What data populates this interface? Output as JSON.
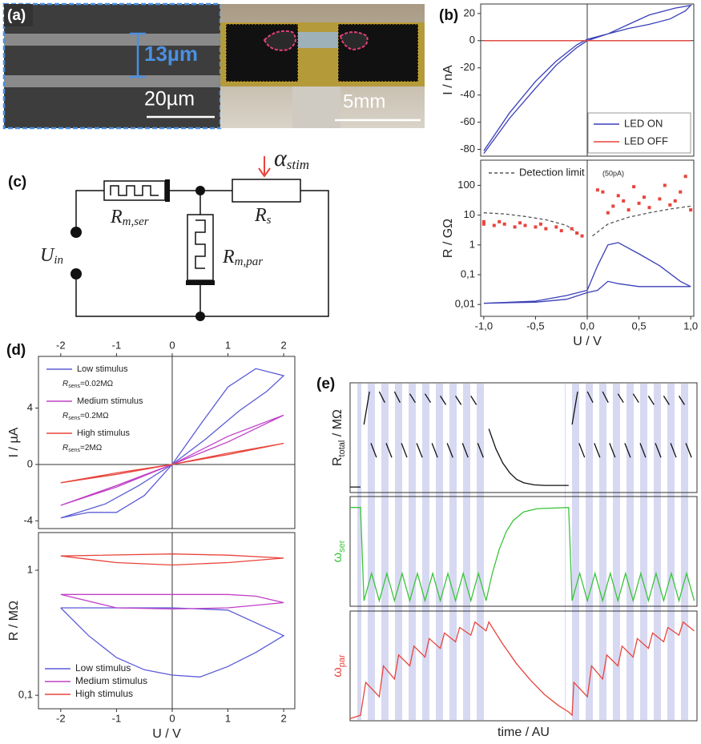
{
  "panel_labels": [
    "(a)",
    "(b)",
    "(c)",
    "(d)",
    "(e)"
  ],
  "micrograph": {
    "gap_width": "13µm",
    "scale_bar": "20µm"
  },
  "photo": {
    "scale_bar": "5mm"
  },
  "circuit": {
    "stimulus": {
      "symbol": "α",
      "subscript": "stim"
    },
    "series_resistor": {
      "symbol": "R",
      "subscript": "s"
    },
    "memristor_series": {
      "symbol": "R",
      "subscript": "m,ser"
    },
    "memristor_parallel": {
      "symbol": "R",
      "subscript": "m,par"
    },
    "source": {
      "symbol": "U",
      "subscript": "in"
    }
  },
  "chart_data": [
    {
      "type": "line",
      "ylabel": "I / nA",
      "xlim": [
        -1.03,
        1.03
      ],
      "ylim": [
        -85,
        27
      ],
      "yticks": [
        -80,
        -60,
        -40,
        -20,
        0,
        20
      ],
      "zero_lines": true,
      "legend": "lower right",
      "series": [
        {
          "name": "LED ON",
          "color": "#3a3fb8",
          "x": [
            -1,
            -0.75,
            -0.5,
            -0.3,
            -0.1,
            0,
            0.2,
            0.4,
            0.6,
            0.8,
            0.95,
            1,
            0.85,
            0.6,
            0.4,
            0.2,
            0,
            -0.1,
            -0.3,
            -0.5,
            -0.75,
            -1
          ],
          "values": [
            -83,
            -57,
            -35,
            -18,
            -5,
            0,
            5,
            9,
            12,
            16,
            22,
            26,
            24,
            19,
            12,
            5,
            1,
            -3,
            -15,
            -30,
            -53,
            -81
          ]
        },
        {
          "name": "LED OFF",
          "color": "#e8453c",
          "x": [
            -1,
            1
          ],
          "values": [
            0,
            0
          ]
        }
      ]
    },
    {
      "type": "line",
      "log_y": true,
      "xlabel": "U / V",
      "ylabel": "R / GΩ",
      "xlim": [
        -1.03,
        1.03
      ],
      "ylim": [
        0.004,
        700
      ],
      "zero_lines": true,
      "legend": "upper left",
      "xticks": [
        {
          "value": -1,
          "label": "-1,0"
        },
        {
          "value": -0.5,
          "label": "-0,5"
        },
        {
          "value": 0,
          "label": "0,0"
        },
        {
          "value": 0.5,
          "label": "0,5"
        },
        {
          "value": 1,
          "label": "1,0"
        }
      ],
      "yticks": [
        {
          "value": 0.01,
          "label": "0,01"
        },
        {
          "value": 0.1,
          "label": "0,1"
        },
        1,
        10,
        100
      ],
      "series": [
        {
          "name": "Detection limit",
          "name_note": "(50pA)",
          "style": "dashed",
          "color": "#555555",
          "x": [
            -1,
            -0.8,
            -0.6,
            -0.4,
            -0.2,
            -0.05,
            null,
            0.05,
            0.2,
            0.4,
            0.6,
            0.8,
            1
          ],
          "values": [
            12,
            11,
            9,
            7,
            4.5,
            2,
            null,
            2,
            5,
            8.5,
            12,
            16,
            20
          ]
        },
        {
          "style": "points",
          "color": "#e8453c",
          "x": [
            -1,
            -1,
            -0.9,
            -0.85,
            -0.8,
            -0.7,
            -0.65,
            -0.6,
            -0.5,
            -0.45,
            -0.4,
            -0.3,
            -0.25,
            -0.15,
            -0.1,
            -0.05,
            0.1,
            0.15,
            0.2,
            0.25,
            0.3,
            0.35,
            0.4,
            0.45,
            0.5,
            0.55,
            0.6,
            0.7,
            0.75,
            0.8,
            0.85,
            0.9,
            0.95,
            1
          ],
          "values": [
            6,
            5,
            4.5,
            6,
            5,
            4,
            5.5,
            4.5,
            4,
            5,
            3.5,
            4,
            3,
            3.5,
            2.5,
            2,
            70,
            60,
            12,
            20,
            45,
            30,
            15,
            90,
            25,
            40,
            18,
            35,
            100,
            22,
            30,
            60,
            200,
            15
          ]
        },
        {
          "color": "#3a3fb8",
          "x": [
            -1,
            -0.5,
            -0.2,
            0,
            0.1,
            0.2,
            0.3,
            0.5,
            0.7,
            0.9,
            1,
            0.8,
            0.5,
            0.3,
            0.2,
            0.1,
            0,
            -0.2,
            -0.5,
            -1
          ],
          "values": [
            0.011,
            0.013,
            0.02,
            0.03,
            0.2,
            1,
            1.2,
            0.5,
            0.2,
            0.06,
            0.04,
            0.04,
            0.04,
            0.05,
            0.06,
            0.03,
            0.025,
            0.015,
            0.012,
            0.011
          ]
        }
      ]
    },
    {
      "type": "line",
      "ylabel": "I / µA",
      "xaxis_top": true,
      "xlim": [
        -2.4,
        2.2
      ],
      "ylim": [
        -4.55,
        7.67
      ],
      "xticks": [
        -2,
        -1,
        0,
        1,
        2
      ],
      "yticks": [
        -4,
        0,
        4
      ],
      "zero_lines": true,
      "legend": "upper left",
      "series": [
        {
          "name": "Low stimulus",
          "note": {
            "symbol": "R",
            "subscript": "sens",
            "text": "=0.02MΩ"
          },
          "color": "#5b5bd6",
          "x": [
            -2,
            -1.5,
            -1,
            -0.5,
            0,
            0.5,
            1,
            1.5,
            2,
            1.7,
            1.2,
            0.6,
            0,
            -0.6,
            -1.2,
            -2
          ],
          "values": [
            -3.8,
            -3.4,
            -3.4,
            -2.2,
            0,
            2.8,
            5.5,
            6.8,
            6.3,
            5.2,
            3.8,
            1.8,
            0,
            -1.5,
            -2.8,
            -3.8
          ]
        },
        {
          "name": "Medium stimulus",
          "note": {
            "symbol": "R",
            "subscript": "sens",
            "text": "=0.2MΩ"
          },
          "color": "#c040c8",
          "x": [
            -2,
            -1,
            0,
            1,
            2,
            1,
            0,
            -1,
            -2
          ],
          "values": [
            -2.9,
            -1.5,
            0,
            1.6,
            3.5,
            2,
            0,
            -1.6,
            -2.9
          ]
        },
        {
          "name": "High stimulus",
          "note": {
            "symbol": "R",
            "subscript": "sens",
            "text": "=2MΩ"
          },
          "color": "#e8453c",
          "x": [
            -2,
            -1,
            0,
            1,
            2,
            1,
            0,
            -1,
            -2
          ],
          "values": [
            -1.3,
            -0.7,
            0,
            0.7,
            1.5,
            0.8,
            0,
            -0.6,
            -1.3
          ]
        }
      ]
    },
    {
      "type": "line",
      "log_y": true,
      "xlabel": "U / V",
      "ylabel": "R / MΩ",
      "xlim": [
        -2.4,
        2.2
      ],
      "ylim": [
        0.078,
        2
      ],
      "zero_lines": true,
      "legend": "lower left",
      "xticks": [
        -2,
        -1,
        0,
        1,
        2
      ],
      "yticks": [
        {
          "value": 0.1,
          "label": "0,1"
        },
        1
      ],
      "series": [
        {
          "name": "Low stimulus",
          "color": "#5b5bd6",
          "x": [
            -2,
            0,
            1,
            2,
            1.5,
            1,
            0.5,
            0,
            -0.5,
            -1,
            -1.5,
            -2
          ],
          "values": [
            0.5,
            0.5,
            0.48,
            0.3,
            0.22,
            0.17,
            0.14,
            0.145,
            0.16,
            0.2,
            0.3,
            0.5
          ]
        },
        {
          "name": "Medium stimulus",
          "color": "#c040c8",
          "x": [
            -2,
            1,
            1.5,
            2,
            1,
            0,
            -1,
            -2
          ],
          "values": [
            0.64,
            0.64,
            0.62,
            0.55,
            0.5,
            0.49,
            0.5,
            0.64
          ]
        },
        {
          "name": "High stimulus",
          "color": "#e8453c",
          "x": [
            -2,
            0,
            1,
            2,
            1,
            0,
            -1,
            -2
          ],
          "values": [
            1.3,
            1.35,
            1.32,
            1.25,
            1.15,
            1.1,
            1.15,
            1.3
          ]
        }
      ]
    },
    {
      "type": "line",
      "ylabel": {
        "symbol": "R",
        "subscript": "total",
        "unit": " / MΩ"
      },
      "xlim": [
        0,
        100
      ],
      "ylim": [
        0,
        1
      ],
      "series": [
        {
          "color": "#111111",
          "x": [
            0,
            3,
            null,
            40,
            42,
            44,
            46,
            48,
            50,
            53,
            56,
            63
          ],
          "values": [
            0.05,
            0.05,
            null,
            0.58,
            0.4,
            0.27,
            0.18,
            0.12,
            0.09,
            0.07,
            0.065,
            0.065
          ]
        },
        {
          "color": "#111111",
          "x": [
            4,
            5.6,
            null,
            8.4,
            10,
            null,
            12.8,
            14.4,
            null,
            17.2,
            18.8,
            null,
            21.6,
            23.2,
            null,
            26,
            27.6,
            null,
            30.4,
            32,
            null,
            34.8,
            36.4,
            null,
            64,
            65.6,
            null,
            68.4,
            70,
            null,
            72.8,
            74.4,
            null,
            77.2,
            78.8,
            null,
            81.6,
            83.2,
            null,
            86,
            87.6,
            null,
            90.4,
            92,
            null,
            94.8,
            96.4
          ],
          "values": [
            0.62,
            0.92,
            null,
            0.92,
            0.82,
            null,
            0.92,
            0.82,
            null,
            0.9,
            0.82,
            null,
            0.9,
            0.82,
            null,
            0.88,
            0.8,
            null,
            0.88,
            0.8,
            null,
            0.88,
            0.8,
            null,
            0.62,
            0.92,
            null,
            0.92,
            0.82,
            null,
            0.92,
            0.82,
            null,
            0.9,
            0.82,
            null,
            0.9,
            0.82,
            null,
            0.88,
            0.8,
            null,
            0.88,
            0.8,
            null,
            0.88,
            0.8
          ]
        },
        {
          "color": "#111111",
          "x": [
            6,
            7.6,
            null,
            10.4,
            12,
            null,
            14.8,
            16.4,
            null,
            19.2,
            20.8,
            null,
            23.6,
            25.2,
            null,
            28,
            29.6,
            null,
            32.4,
            34,
            null,
            36.8,
            38.4,
            null,
            66,
            67.6,
            null,
            70.4,
            72,
            null,
            74.8,
            76.4,
            null,
            79.2,
            80.8,
            null,
            83.6,
            85.2,
            null,
            88,
            89.6,
            null,
            92.4,
            94,
            null,
            96.8,
            98.4
          ],
          "values": [
            0.45,
            0.32,
            null,
            0.45,
            0.32,
            null,
            0.45,
            0.32,
            null,
            0.45,
            0.32,
            null,
            0.45,
            0.32,
            null,
            0.45,
            0.32,
            null,
            0.45,
            0.32,
            null,
            0.45,
            0.32,
            null,
            0.45,
            0.32,
            null,
            0.45,
            0.32,
            null,
            0.45,
            0.32,
            null,
            0.45,
            0.32,
            null,
            0.45,
            0.32,
            null,
            0.45,
            0.32,
            null,
            0.45,
            0.32,
            null,
            0.45,
            0.32
          ]
        }
      ]
    },
    {
      "type": "line",
      "ylabel": {
        "symbol": "ω",
        "subscript": "ser"
      },
      "ylabel_color": "#3cc43c",
      "xlim": [
        0,
        100
      ],
      "ylim": [
        0,
        1
      ],
      "series": [
        {
          "color": "#3cc43c",
          "x": [
            0,
            3,
            4,
            6.2,
            8.4,
            10.6,
            12.8,
            15,
            17.2,
            19.4,
            21.6,
            23.8,
            26,
            28.2,
            30.4,
            32.6,
            34.8,
            37,
            39.2,
            41,
            43,
            45,
            47,
            50,
            54,
            63,
            64,
            66.2,
            68.4,
            70.6,
            72.8,
            75,
            77.2,
            79.4,
            81.6,
            83.8,
            86,
            88.2,
            90.4,
            92.6,
            94.8,
            97,
            99.2
          ],
          "values": [
            0.9,
            0.9,
            0.05,
            0.3,
            0.05,
            0.3,
            0.05,
            0.3,
            0.05,
            0.3,
            0.05,
            0.3,
            0.05,
            0.3,
            0.05,
            0.3,
            0.05,
            0.3,
            0.05,
            0.3,
            0.52,
            0.68,
            0.78,
            0.86,
            0.89,
            0.9,
            0.05,
            0.3,
            0.05,
            0.3,
            0.05,
            0.3,
            0.05,
            0.3,
            0.05,
            0.3,
            0.05,
            0.3,
            0.05,
            0.3,
            0.05,
            0.3,
            0.05
          ]
        }
      ]
    },
    {
      "type": "line",
      "ylabel": {
        "symbol": "ω",
        "subscript": "par"
      },
      "ylabel_color": "#e8453c",
      "xlabel": "time / AU",
      "xlim": [
        0,
        100
      ],
      "ylim": [
        0,
        1
      ],
      "series": [
        {
          "color": "#e8453c",
          "x": [
            0,
            3,
            4.5,
            8.4,
            9.6,
            12.8,
            14,
            17.2,
            18.4,
            21.6,
            22.8,
            26,
            27.2,
            30.4,
            31.6,
            34.8,
            36,
            39.2,
            40,
            44,
            48,
            52,
            56,
            60,
            63,
            64,
            64.5,
            68.4,
            69.6,
            72.8,
            74,
            77.2,
            78.4,
            81.6,
            82.8,
            86,
            87.2,
            90.4,
            91.6,
            94.8,
            96,
            99.2
          ],
          "values": [
            0.02,
            0.05,
            0.35,
            0.22,
            0.5,
            0.38,
            0.6,
            0.5,
            0.68,
            0.58,
            0.75,
            0.66,
            0.8,
            0.72,
            0.85,
            0.78,
            0.9,
            0.82,
            0.9,
            0.7,
            0.52,
            0.37,
            0.24,
            0.14,
            0.08,
            0.05,
            0.35,
            0.22,
            0.5,
            0.38,
            0.6,
            0.5,
            0.68,
            0.58,
            0.75,
            0.66,
            0.8,
            0.72,
            0.85,
            0.78,
            0.9,
            0.82
          ]
        }
      ]
    }
  ]
}
